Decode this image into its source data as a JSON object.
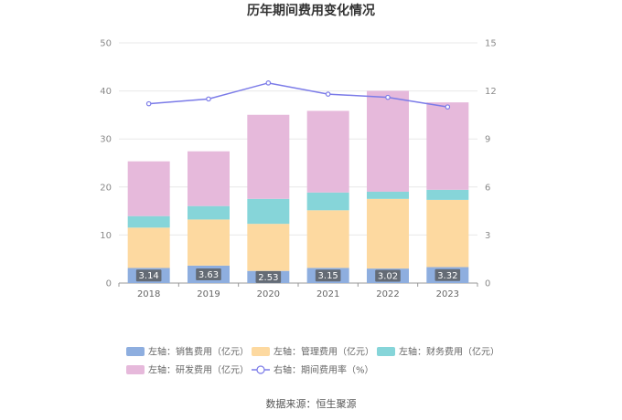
{
  "chart_data": {
    "type": "bar",
    "title": "历年期间费用变化情况",
    "categories": [
      "2018",
      "2019",
      "2020",
      "2021",
      "2022",
      "2023"
    ],
    "y_left": {
      "min": 0,
      "max": 50,
      "ticks": [
        "0",
        "10",
        "20",
        "30",
        "40",
        "50"
      ]
    },
    "y_right": {
      "min": 0,
      "max": 15,
      "ticks": [
        "0",
        "3",
        "6",
        "9",
        "12",
        "15"
      ]
    },
    "stacked": true,
    "series": [
      {
        "name": "左轴：销售费用（亿元）",
        "axis": "left",
        "type": "bar",
        "color": "#8eaedf",
        "values": [
          3.14,
          3.63,
          2.53,
          3.15,
          3.02,
          3.32
        ],
        "data_labels": [
          "3.14",
          "3.63",
          "2.53",
          "3.15",
          "3.02",
          "3.32"
        ]
      },
      {
        "name": "左轴：管理费用（亿元）",
        "axis": "left",
        "type": "bar",
        "color": "#fdd9a0",
        "values": [
          8.4,
          9.6,
          9.8,
          12.0,
          14.5,
          14.0
        ]
      },
      {
        "name": "左轴：财务费用（亿元）",
        "axis": "left",
        "type": "bar",
        "color": "#86d5d9",
        "values": [
          2.4,
          2.8,
          5.2,
          3.7,
          1.5,
          2.1
        ]
      },
      {
        "name": "左轴：研发费用（亿元）",
        "axis": "left",
        "type": "bar",
        "color": "#e6b9db",
        "values": [
          11.4,
          11.4,
          17.5,
          17.0,
          21.0,
          18.2
        ]
      },
      {
        "name": "右轴：期间费用率（%）",
        "axis": "right",
        "type": "line",
        "color": "#7b7be8",
        "values": [
          11.2,
          11.5,
          12.5,
          11.8,
          11.6,
          11.0
        ]
      }
    ],
    "legend_position": "bottom",
    "grid": true
  },
  "source_text": "数据来源：恒生聚源"
}
